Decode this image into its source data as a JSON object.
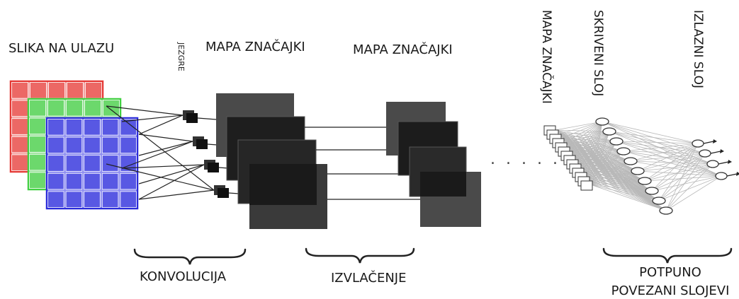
{
  "labels": {
    "input_image": "SLIKA NA ULAZU",
    "kernels": "JEZGRE",
    "feature_map_1": "MAPA ZNAČAJKI",
    "feature_map_2": "MAPA ZNAČAJKI",
    "feature_map_3": "MAPA ZNAČAJKI",
    "hidden_layer": "SKRIVENI SLOJ",
    "output_layer": "IZLAZNI SLOJ",
    "convolution": "KONVOLUCIJA",
    "pooling": "IZVLAČENJE",
    "fully_connected_line1": "POTPUNO",
    "fully_connected_line2": "POVEZANI SLOJEVI"
  },
  "colors": {
    "red_channel": "#e53935",
    "green_channel": "#43d043",
    "blue_channel": "#2b2bd9",
    "feature_map_dark": "#1c1c1c",
    "feature_map_mid": "#4a4a4a",
    "connection_lines": "#222222",
    "dense_lines": "#b8b8b8"
  },
  "input_channels": [
    "red",
    "green",
    "blue"
  ],
  "ellipsis": ". . . . ."
}
